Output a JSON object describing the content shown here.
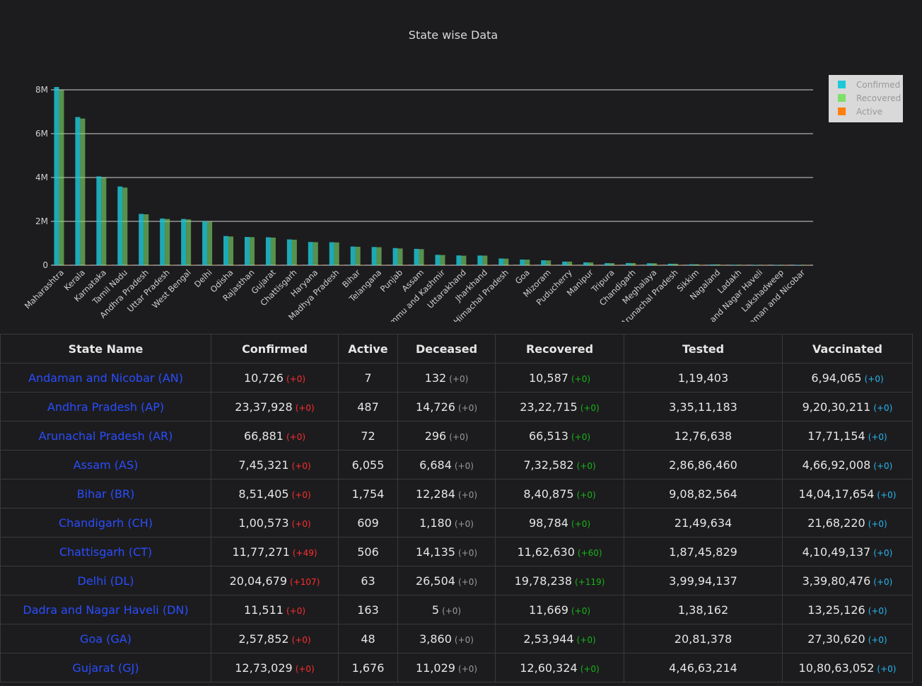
{
  "chart_data": {
    "type": "bar",
    "title": "State wise Data",
    "categories": [
      "Maharashtra",
      "Kerala",
      "Karnataka",
      "Tamil Nadu",
      "Andhra Pradesh",
      "Uttar Pradesh",
      "West Bengal",
      "Delhi",
      "Odisha",
      "Rajasthan",
      "Gujarat",
      "Chattisgarh",
      "Haryana",
      "Madhya Pradesh",
      "Bihar",
      "Telangana",
      "Punjab",
      "Assam",
      "Jammu and Kashmir",
      "Uttarakhand",
      "Jharkhand",
      "Himachal Pradesh",
      "Goa",
      "Mizoram",
      "Puducherry",
      "Manipur",
      "Tripura",
      "Chandigarh",
      "Meghalaya",
      "Arunachal Pradesh",
      "Sikkim",
      "Nagaland",
      "Ladakh",
      "Dadra and Nagar Haveli",
      "Lakshadweep",
      "Andaman and Nicobar"
    ],
    "xtick_labels": [
      "Maharashtra",
      "Kerala",
      "Karnataka",
      "Tamil Nadu",
      "Andhra Pradesh",
      "Uttar Pradesh",
      "West Bengal",
      "Delhi",
      "Odisha",
      "Rajasthan",
      "Gujarat",
      "Chattisgarh",
      "Haryana",
      "Madhya Pradesh",
      "Bihar",
      "Telangana",
      "Punjab",
      "Assam",
      "mmu and Kashmir",
      "Uttarakhand",
      "Jharkhand",
      "Himachal Pradesh",
      "Goa",
      "Mizoram",
      "Puducherry",
      "Manipur",
      "Tripura",
      "Chandigarh",
      "Meghalaya",
      "Arunachal Pradesh",
      "Sikkim",
      "Nagaland",
      "Ladakh",
      "a and Nagar Haveli",
      "Lakshadweep",
      "Iaman and Nicobar"
    ],
    "series": [
      {
        "name": "Confirmed",
        "color": "#1fc8d8",
        "values": [
          8130000,
          6760000,
          4050000,
          3590000,
          2340000,
          2130000,
          2110000,
          2005000,
          1330000,
          1290000,
          1273000,
          1177000,
          1060000,
          1050000,
          851000,
          830000,
          782000,
          745000,
          473000,
          447000,
          443000,
          306000,
          258000,
          225000,
          166000,
          130000,
          95000,
          100000,
          90000,
          67000,
          43000,
          35000,
          21000,
          11500,
          10700,
          10726
        ]
      },
      {
        "name": "Recovered",
        "color": "#7ee06a",
        "values": [
          7990000,
          6690000,
          4000000,
          3540000,
          2322000,
          2110000,
          2090000,
          1978000,
          1310000,
          1280000,
          1260000,
          1163000,
          1050000,
          1040000,
          841000,
          820000,
          763000,
          733000,
          466000,
          433000,
          437000,
          300000,
          254000,
          220000,
          164000,
          128000,
          94000,
          98800,
          89000,
          66500,
          42000,
          34000,
          20800,
          11669,
          10600,
          10587
        ]
      },
      {
        "name": "Active",
        "color": "#ff7f0e",
        "values": [
          1200,
          600,
          400,
          300,
          487,
          100,
          500,
          63,
          300,
          50,
          1676,
          506,
          30,
          20,
          1754,
          200,
          50,
          6055,
          100,
          40,
          20,
          50,
          48,
          10,
          20,
          20,
          5,
          609,
          10,
          72,
          5,
          5,
          5,
          163,
          5,
          7
        ]
      }
    ],
    "yticks": [
      {
        "value": 0,
        "label": "0"
      },
      {
        "value": 2000000,
        "label": "2M"
      },
      {
        "value": 4000000,
        "label": "4M"
      },
      {
        "value": 6000000,
        "label": "6M"
      },
      {
        "value": 8000000,
        "label": "8M"
      }
    ],
    "ylim": [
      0,
      8130000
    ],
    "grid": true,
    "legend_placement": "top-right"
  },
  "table": {
    "headers": [
      "State Name",
      "Confirmed",
      "Active",
      "Deceased",
      "Recovered",
      "Tested",
      "Vaccinated"
    ],
    "rows": [
      {
        "state": "Andaman and Nicobar (AN)",
        "confirmed": "10,726",
        "confirmed_delta": "(+0)",
        "active": "7",
        "deceased": "132",
        "deceased_delta": "(+0)",
        "recovered": "10,587",
        "recovered_delta": "(+0)",
        "tested": "1,19,403",
        "vaccinated": "6,94,065",
        "vaccinated_delta": "(+0)"
      },
      {
        "state": "Andhra Pradesh (AP)",
        "confirmed": "23,37,928",
        "confirmed_delta": "(+0)",
        "active": "487",
        "deceased": "14,726",
        "deceased_delta": "(+0)",
        "recovered": "23,22,715",
        "recovered_delta": "(+0)",
        "tested": "3,35,11,183",
        "vaccinated": "9,20,30,211",
        "vaccinated_delta": "(+0)"
      },
      {
        "state": "Arunachal Pradesh (AR)",
        "confirmed": "66,881",
        "confirmed_delta": "(+0)",
        "active": "72",
        "deceased": "296",
        "deceased_delta": "(+0)",
        "recovered": "66,513",
        "recovered_delta": "(+0)",
        "tested": "12,76,638",
        "vaccinated": "17,71,154",
        "vaccinated_delta": "(+0)"
      },
      {
        "state": "Assam (AS)",
        "confirmed": "7,45,321",
        "confirmed_delta": "(+0)",
        "active": "6,055",
        "deceased": "6,684",
        "deceased_delta": "(+0)",
        "recovered": "7,32,582",
        "recovered_delta": "(+0)",
        "tested": "2,86,86,460",
        "vaccinated": "4,66,92,008",
        "vaccinated_delta": "(+0)"
      },
      {
        "state": "Bihar (BR)",
        "confirmed": "8,51,405",
        "confirmed_delta": "(+0)",
        "active": "1,754",
        "deceased": "12,284",
        "deceased_delta": "(+0)",
        "recovered": "8,40,875",
        "recovered_delta": "(+0)",
        "tested": "9,08,82,564",
        "vaccinated": "14,04,17,654",
        "vaccinated_delta": "(+0)"
      },
      {
        "state": "Chandigarh (CH)",
        "confirmed": "1,00,573",
        "confirmed_delta": "(+0)",
        "active": "609",
        "deceased": "1,180",
        "deceased_delta": "(+0)",
        "recovered": "98,784",
        "recovered_delta": "(+0)",
        "tested": "21,49,634",
        "vaccinated": "21,68,220",
        "vaccinated_delta": "(+0)"
      },
      {
        "state": "Chattisgarh (CT)",
        "confirmed": "11,77,271",
        "confirmed_delta": "(+49)",
        "active": "506",
        "deceased": "14,135",
        "deceased_delta": "(+0)",
        "recovered": "11,62,630",
        "recovered_delta": "(+60)",
        "tested": "1,87,45,829",
        "vaccinated": "4,10,49,137",
        "vaccinated_delta": "(+0)"
      },
      {
        "state": "Delhi (DL)",
        "confirmed": "20,04,679",
        "confirmed_delta": "(+107)",
        "active": "63",
        "deceased": "26,504",
        "deceased_delta": "(+0)",
        "recovered": "19,78,238",
        "recovered_delta": "(+119)",
        "tested": "3,99,94,137",
        "vaccinated": "3,39,80,476",
        "vaccinated_delta": "(+0)"
      },
      {
        "state": "Dadra and Nagar Haveli (DN)",
        "confirmed": "11,511",
        "confirmed_delta": "(+0)",
        "active": "163",
        "deceased": "5",
        "deceased_delta": "(+0)",
        "recovered": "11,669",
        "recovered_delta": "(+0)",
        "tested": "1,38,162",
        "vaccinated": "13,25,126",
        "vaccinated_delta": "(+0)"
      },
      {
        "state": "Goa (GA)",
        "confirmed": "2,57,852",
        "confirmed_delta": "(+0)",
        "active": "48",
        "deceased": "3,860",
        "deceased_delta": "(+0)",
        "recovered": "2,53,944",
        "recovered_delta": "(+0)",
        "tested": "20,81,378",
        "vaccinated": "27,30,620",
        "vaccinated_delta": "(+0)"
      },
      {
        "state": "Gujarat (GJ)",
        "confirmed": "12,73,029",
        "confirmed_delta": "(+0)",
        "active": "1,676",
        "deceased": "11,029",
        "deceased_delta": "(+0)",
        "recovered": "12,60,324",
        "recovered_delta": "(+0)",
        "tested": "4,46,63,214",
        "vaccinated": "10,80,63,052",
        "vaccinated_delta": "(+0)"
      }
    ]
  }
}
